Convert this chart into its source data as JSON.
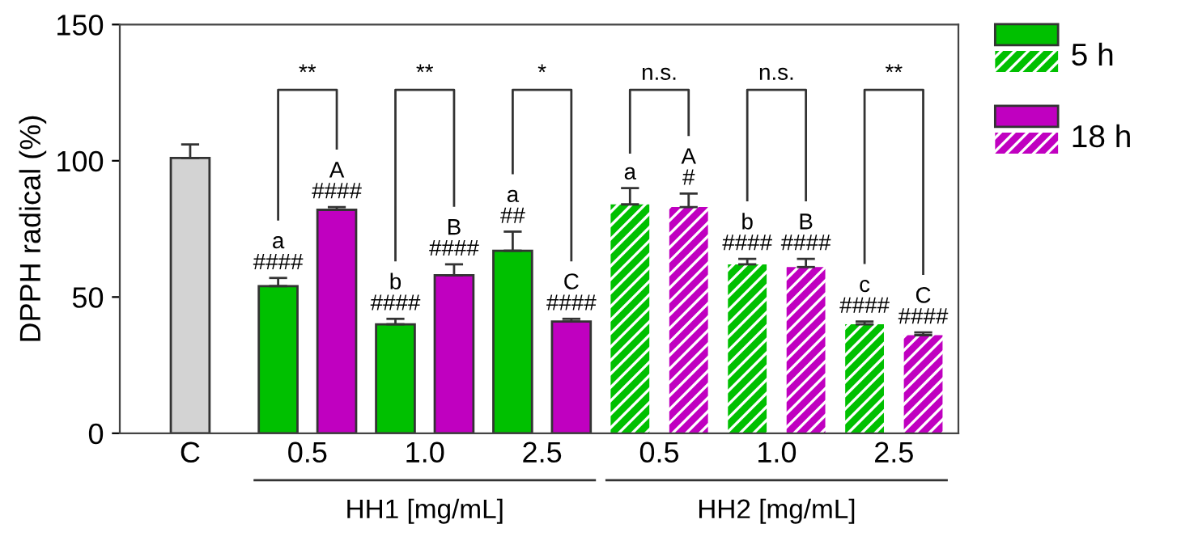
{
  "chart_data": {
    "type": "bar",
    "ylabel": "DPPH radical (%)",
    "categories": [
      "C",
      "0.5",
      "1.0",
      "2.5",
      "0.5",
      "1.0",
      "2.5"
    ],
    "ylim": [
      0,
      150
    ],
    "yticks": [
      0,
      50,
      100,
      150
    ],
    "grid": false,
    "legend": "top right",
    "series": [
      {
        "color": "#d3d3d3",
        "values": [
          101,
          null,
          null,
          null,
          null,
          null,
          null
        ],
        "errors": [
          [
            101,
            106
          ],
          null,
          null,
          null,
          null,
          null,
          null
        ]
      },
      {
        "name": "5 h",
        "color": "#00c000",
        "values": [
          null,
          54,
          40,
          67,
          null,
          null,
          null
        ],
        "errors": [
          null,
          [
            54,
            57
          ],
          [
            40,
            42
          ],
          [
            67,
            74
          ],
          null,
          null,
          null
        ],
        "value_labels": [
          null,
          "a\n####",
          "b\n####",
          "a\n##",
          null,
          null,
          null
        ]
      },
      {
        "name": "18 h",
        "color": "#c000c0",
        "values": [
          null,
          82,
          58,
          41,
          null,
          null,
          null
        ],
        "errors": [
          null,
          [
            82,
            83
          ],
          [
            58,
            62
          ],
          [
            41,
            42
          ],
          null,
          null,
          null
        ],
        "value_labels": [
          null,
          "A\n####",
          "B\n####",
          "C\n####",
          null,
          null,
          null
        ]
      },
      {
        "color": "#00c000",
        "values": [
          null,
          null,
          null,
          null,
          84,
          62,
          40
        ],
        "errors": [
          null,
          null,
          null,
          null,
          [
            84,
            90
          ],
          [
            62,
            64
          ],
          [
            40,
            41
          ]
        ],
        "value_labels": [
          null,
          null,
          null,
          null,
          "a",
          "b\n####",
          "c\n####"
        ]
      },
      {
        "color": "#c000c0",
        "values": [
          null,
          null,
          null,
          null,
          83,
          61,
          36
        ],
        "errors": [
          null,
          null,
          null,
          null,
          [
            83,
            88
          ],
          [
            61,
            64
          ],
          [
            36,
            37
          ]
        ],
        "value_labels": [
          null,
          null,
          null,
          null,
          "A\n#",
          "B\n####",
          "C\n####"
        ]
      }
    ],
    "annotations": [
      "**",
      "**",
      "*",
      "n.s.",
      "n.s.",
      "**",
      "HH1 [mg/mL]",
      "HH2 [mg/mL]"
    ]
  }
}
